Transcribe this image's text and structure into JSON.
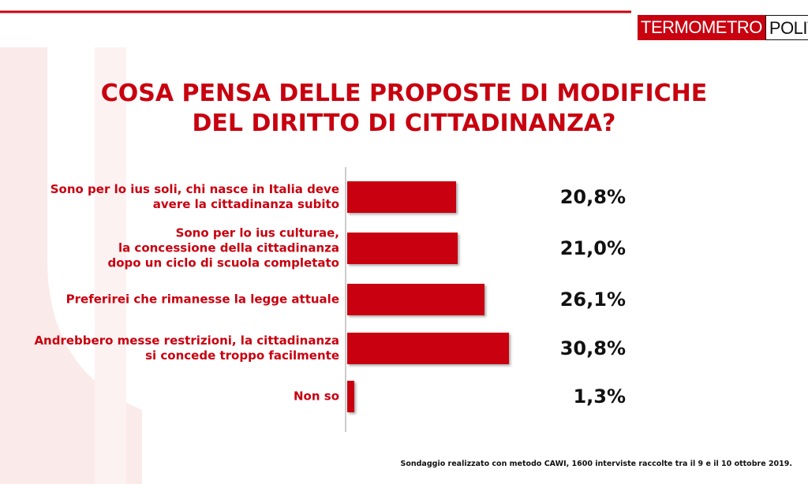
{
  "chart_data": {
    "type": "bar",
    "orientation": "horizontal",
    "brand": {
      "left": "TERMOMETRO",
      "right": "POLITICO"
    },
    "title": "COSA PENSA DELLE PROPOSTE DI MODIFICHE\nDEL DIRITTO DI CITTADINANZA?",
    "categories": [
      "Sono per lo ius soli, chi nasce in Italia deve\navere la cittadinanza subito",
      "Sono per lo ius culturae,\nla concessione della cittadinanza\ndopo un ciclo di scuola completato",
      "Preferirei che rimanesse la legge attuale",
      "Andrebbero messe restrizioni, la cittadinanza\nsi concede troppo facilmente",
      "Non so"
    ],
    "values": [
      20.8,
      21.0,
      26.1,
      30.8,
      1.3
    ],
    "value_labels": [
      "20,8%",
      "21,0%",
      "26,1%",
      "30,8%",
      "1,3%"
    ],
    "color": "#c8000f",
    "source": "Sondaggio realizzato con metodo CAWI, 1600 interviste raccolte tra il 9 e il 10 ottobre 2019."
  }
}
